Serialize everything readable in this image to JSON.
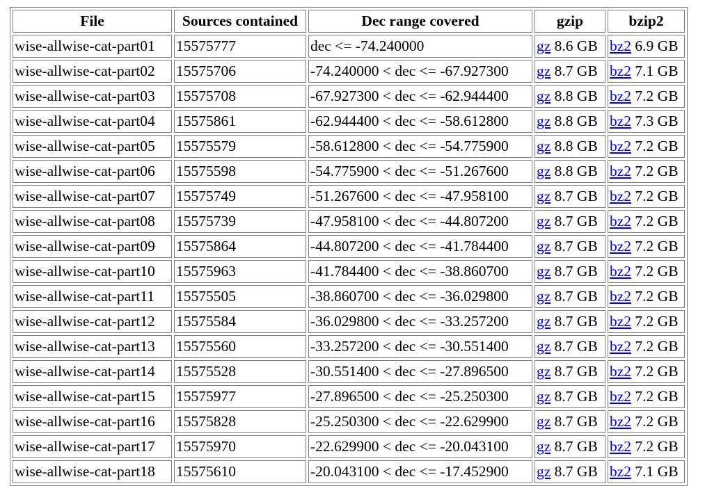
{
  "table": {
    "headers": {
      "file": "File",
      "sources": "Sources contained",
      "dec": "Dec range covered",
      "gzip": "gzip",
      "bzip2": "bzip2"
    },
    "link_labels": {
      "gz": "gz",
      "bz2": "bz2"
    },
    "rows": [
      {
        "file": "wise-allwise-cat-part01",
        "sources": "15575777",
        "dec": "dec <= -74.240000",
        "gz_size": " 8.6 GB",
        "bz2_size": " 6.9 GB"
      },
      {
        "file": "wise-allwise-cat-part02",
        "sources": "15575706",
        "dec": "-74.240000 < dec <= -67.927300",
        "gz_size": " 8.7 GB",
        "bz2_size": " 7.1 GB"
      },
      {
        "file": "wise-allwise-cat-part03",
        "sources": "15575708",
        "dec": "-67.927300 < dec <= -62.944400",
        "gz_size": " 8.8 GB",
        "bz2_size": " 7.2 GB"
      },
      {
        "file": "wise-allwise-cat-part04",
        "sources": "15575861",
        "dec": "-62.944400 < dec <= -58.612800",
        "gz_size": " 8.8 GB",
        "bz2_size": " 7.3 GB"
      },
      {
        "file": "wise-allwise-cat-part05",
        "sources": "15575579",
        "dec": "-58.612800 < dec <= -54.775900",
        "gz_size": " 8.8 GB",
        "bz2_size": " 7.2 GB"
      },
      {
        "file": "wise-allwise-cat-part06",
        "sources": "15575598",
        "dec": "-54.775900 < dec <= -51.267600",
        "gz_size": " 8.8 GB",
        "bz2_size": " 7.2 GB"
      },
      {
        "file": "wise-allwise-cat-part07",
        "sources": "15575749",
        "dec": "-51.267600 < dec <= -47.958100",
        "gz_size": " 8.7 GB",
        "bz2_size": " 7.2 GB"
      },
      {
        "file": "wise-allwise-cat-part08",
        "sources": "15575739",
        "dec": "-47.958100 < dec <= -44.807200",
        "gz_size": " 8.7 GB",
        "bz2_size": " 7.2 GB"
      },
      {
        "file": "wise-allwise-cat-part09",
        "sources": "15575864",
        "dec": "-44.807200 < dec <= -41.784400",
        "gz_size": " 8.7 GB",
        "bz2_size": " 7.2 GB"
      },
      {
        "file": "wise-allwise-cat-part10",
        "sources": "15575963",
        "dec": "-41.784400 < dec <= -38.860700",
        "gz_size": " 8.7 GB",
        "bz2_size": " 7.2 GB"
      },
      {
        "file": "wise-allwise-cat-part11",
        "sources": "15575505",
        "dec": "-38.860700 < dec <= -36.029800",
        "gz_size": " 8.7 GB",
        "bz2_size": " 7.2 GB"
      },
      {
        "file": "wise-allwise-cat-part12",
        "sources": "15575584",
        "dec": "-36.029800 < dec <= -33.257200",
        "gz_size": " 8.7 GB",
        "bz2_size": " 7.2 GB"
      },
      {
        "file": "wise-allwise-cat-part13",
        "sources": "15575560",
        "dec": "-33.257200 < dec <= -30.551400",
        "gz_size": " 8.7 GB",
        "bz2_size": " 7.2 GB"
      },
      {
        "file": "wise-allwise-cat-part14",
        "sources": "15575528",
        "dec": "-30.551400 < dec <= -27.896500",
        "gz_size": " 8.7 GB",
        "bz2_size": " 7.2 GB"
      },
      {
        "file": "wise-allwise-cat-part15",
        "sources": "15575977",
        "dec": "-27.896500 < dec <= -25.250300",
        "gz_size": " 8.7 GB",
        "bz2_size": " 7.2 GB"
      },
      {
        "file": "wise-allwise-cat-part16",
        "sources": "15575828",
        "dec": "-25.250300 < dec <= -22.629900",
        "gz_size": " 8.7 GB",
        "bz2_size": " 7.2 GB"
      },
      {
        "file": "wise-allwise-cat-part17",
        "sources": "15575970",
        "dec": "-22.629900 < dec <= -20.043100",
        "gz_size": " 8.7 GB",
        "bz2_size": " 7.2 GB"
      },
      {
        "file": "wise-allwise-cat-part18",
        "sources": "15575610",
        "dec": "-20.043100 < dec <= -17.452900",
        "gz_size": " 8.7 GB",
        "bz2_size": " 7.1 GB"
      }
    ]
  },
  "colors": {
    "link": "#0000ee",
    "border": "#808080",
    "text": "#000000",
    "background": "#ffffff"
  }
}
